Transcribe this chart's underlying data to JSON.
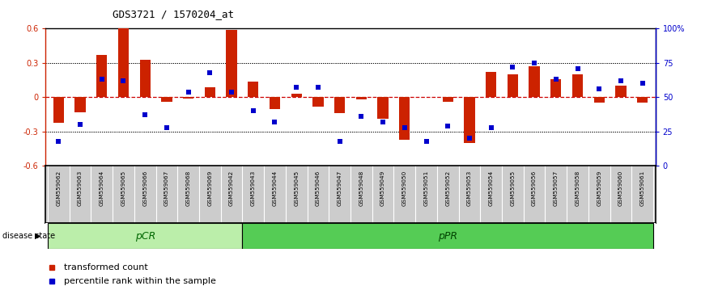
{
  "title": "GDS3721 / 1570204_at",
  "samples": [
    "GSM559062",
    "GSM559063",
    "GSM559064",
    "GSM559065",
    "GSM559066",
    "GSM559067",
    "GSM559068",
    "GSM559069",
    "GSM559042",
    "GSM559043",
    "GSM559044",
    "GSM559045",
    "GSM559046",
    "GSM559047",
    "GSM559048",
    "GSM559049",
    "GSM559050",
    "GSM559051",
    "GSM559052",
    "GSM559053",
    "GSM559054",
    "GSM559055",
    "GSM559056",
    "GSM559057",
    "GSM559058",
    "GSM559059",
    "GSM559060",
    "GSM559061"
  ],
  "bar_values": [
    -0.22,
    -0.13,
    0.37,
    0.6,
    0.33,
    -0.04,
    -0.01,
    0.09,
    0.59,
    0.14,
    -0.1,
    0.03,
    -0.08,
    -0.14,
    -0.02,
    -0.19,
    -0.37,
    0.0,
    -0.04,
    -0.4,
    0.22,
    0.2,
    0.27,
    0.16,
    0.2,
    -0.05,
    0.1,
    -0.05
  ],
  "dot_pct": [
    18,
    30,
    63,
    62,
    37,
    28,
    54,
    68,
    54,
    40,
    32,
    57,
    57,
    18,
    36,
    32,
    28,
    18,
    29,
    20,
    28,
    72,
    75,
    63,
    71,
    56,
    62,
    60
  ],
  "pCR_count": 9,
  "bar_color": "#cc2200",
  "dot_color": "#0000cc",
  "ylim_left": [
    -0.6,
    0.6
  ],
  "ylim_right": [
    0,
    100
  ],
  "yticks_left": [
    -0.6,
    -0.3,
    0.0,
    0.3,
    0.6
  ],
  "yticks_right": [
    0,
    25,
    50,
    75,
    100
  ],
  "hline_zero_color": "#cc0000",
  "hline_dotted_color": "#000000",
  "pCR_color": "#bbeeaa",
  "pPR_color": "#55cc55",
  "label_bar": "transformed count",
  "label_dot": "percentile rank within the sample",
  "title_fontsize": 9,
  "tick_fontsize": 7,
  "label_fontsize": 8
}
